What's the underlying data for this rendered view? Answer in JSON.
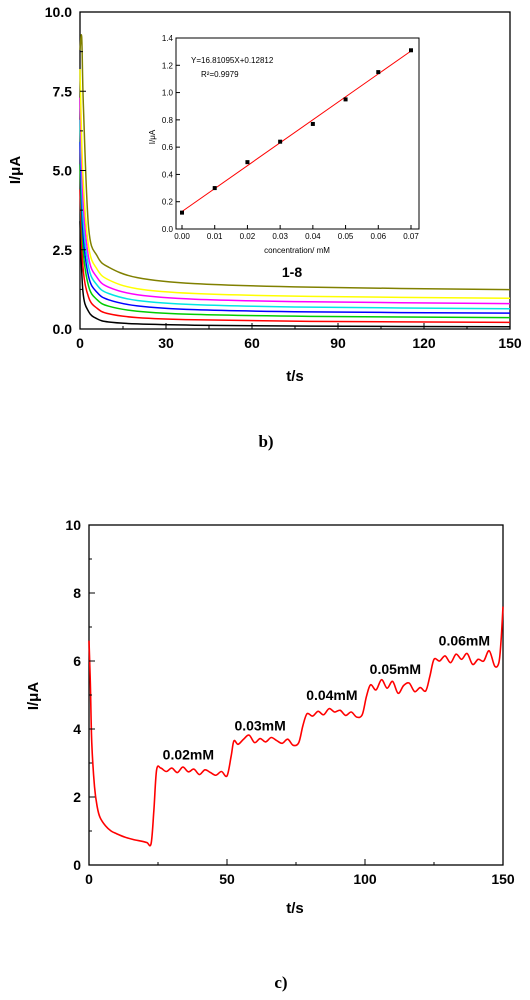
{
  "panel_labels": {
    "b": "b)",
    "c": "c)"
  },
  "chart_data": [
    {
      "type": "line",
      "xlabel": "t/s",
      "ylabel": "I/μA",
      "xlim": [
        0,
        150
      ],
      "ylim": [
        0,
        10
      ],
      "xticks": [
        "0",
        "30",
        "60",
        "90",
        "120",
        "150"
      ],
      "yticks": [
        "0.0",
        "2.5",
        "5.0",
        "7.5",
        "10.0"
      ],
      "annotation": "1-8",
      "series": [
        {
          "color": "#000000",
          "values": [
            [
              0,
              3.4
            ],
            [
              1,
              1.2
            ],
            [
              3,
              0.55
            ],
            [
              6,
              0.32
            ],
            [
              10,
              0.22
            ],
            [
              20,
              0.16
            ],
            [
              40,
              0.12
            ],
            [
              80,
              0.09
            ],
            [
              150,
              0.07
            ]
          ]
        },
        {
          "color": "#ff0000",
          "values": [
            [
              0,
              4.4
            ],
            [
              1,
              2.0
            ],
            [
              3,
              1.0
            ],
            [
              6,
              0.65
            ],
            [
              10,
              0.48
            ],
            [
              20,
              0.36
            ],
            [
              40,
              0.29
            ],
            [
              80,
              0.24
            ],
            [
              150,
              0.21
            ]
          ]
        },
        {
          "color": "#00cc00",
          "values": [
            [
              0,
              5.2
            ],
            [
              1,
              2.6
            ],
            [
              3,
              1.35
            ],
            [
              6,
              0.92
            ],
            [
              10,
              0.72
            ],
            [
              20,
              0.56
            ],
            [
              40,
              0.46
            ],
            [
              80,
              0.4
            ],
            [
              150,
              0.36
            ]
          ]
        },
        {
          "color": "#0000ff",
          "values": [
            [
              0,
              5.9
            ],
            [
              1,
              3.1
            ],
            [
              3,
              1.65
            ],
            [
              6,
              1.15
            ],
            [
              10,
              0.92
            ],
            [
              20,
              0.73
            ],
            [
              40,
              0.61
            ],
            [
              80,
              0.54
            ],
            [
              150,
              0.5
            ]
          ]
        },
        {
          "color": "#00e5e5",
          "values": [
            [
              0,
              6.6
            ],
            [
              1,
              3.6
            ],
            [
              3,
              1.95
            ],
            [
              6,
              1.38
            ],
            [
              10,
              1.12
            ],
            [
              20,
              0.9
            ],
            [
              40,
              0.77
            ],
            [
              80,
              0.69
            ],
            [
              150,
              0.64
            ]
          ]
        },
        {
          "color": "#ff00ff",
          "values": [
            [
              0,
              7.3
            ],
            [
              1,
              4.2
            ],
            [
              3,
              2.25
            ],
            [
              6,
              1.62
            ],
            [
              10,
              1.32
            ],
            [
              20,
              1.08
            ],
            [
              40,
              0.94
            ],
            [
              80,
              0.86
            ],
            [
              150,
              0.8
            ]
          ]
        },
        {
          "color": "#ffff00",
          "values": [
            [
              0,
              8.2
            ],
            [
              1,
              4.9
            ],
            [
              3,
              2.6
            ],
            [
              6,
              1.88
            ],
            [
              10,
              1.55
            ],
            [
              20,
              1.27
            ],
            [
              40,
              1.12
            ],
            [
              80,
              1.03
            ],
            [
              150,
              0.97
            ]
          ]
        },
        {
          "color": "#808000",
          "values": [
            [
              0,
              8.8
            ],
            [
              0.6,
              9.2
            ],
            [
              1.2,
              7.0
            ],
            [
              3,
              3.2
            ],
            [
              6,
              2.3
            ],
            [
              10,
              1.95
            ],
            [
              20,
              1.62
            ],
            [
              40,
              1.43
            ],
            [
              80,
              1.32
            ],
            [
              150,
              1.24
            ]
          ]
        }
      ],
      "inset": {
        "type": "scatter",
        "xlabel": "concentration/ mM",
        "ylabel": "I/μA",
        "xlim": [
          0,
          0.07
        ],
        "ylim": [
          0,
          1.4
        ],
        "xticks": [
          "0.00",
          "0.01",
          "0.02",
          "0.03",
          "0.04",
          "0.05",
          "0.06",
          "0.07"
        ],
        "yticks": [
          "0.0",
          "0.2",
          "0.4",
          "0.6",
          "0.8",
          "1.0",
          "1.2",
          "1.4"
        ],
        "equation": "Y=16.81095X+0.12812",
        "r2": "R²=0.9979",
        "fit": {
          "slope": 16.81095,
          "intercept": 0.12812,
          "color": "#ff0000"
        },
        "points": [
          [
            0,
            0.12
          ],
          [
            0.01,
            0.3
          ],
          [
            0.02,
            0.49
          ],
          [
            0.03,
            0.64
          ],
          [
            0.04,
            0.77
          ],
          [
            0.05,
            0.95
          ],
          [
            0.06,
            1.15
          ],
          [
            0.07,
            1.31
          ]
        ]
      }
    },
    {
      "type": "line",
      "xlabel": "t/s",
      "ylabel": "I/μA",
      "xlim": [
        0,
        150
      ],
      "ylim": [
        0,
        10
      ],
      "xticks": [
        "0",
        "50",
        "100",
        "150"
      ],
      "yticks": [
        "0",
        "2",
        "4",
        "6",
        "8",
        "10"
      ],
      "series": [
        {
          "color": "#ff0000",
          "values": [
            [
              0,
              6.6
            ],
            [
              0.5,
              5.3
            ],
            [
              1,
              3.6
            ],
            [
              2,
              2.3
            ],
            [
              3,
              1.7
            ],
            [
              4,
              1.4
            ],
            [
              6,
              1.15
            ],
            [
              8,
              1.0
            ],
            [
              10,
              0.92
            ],
            [
              13,
              0.82
            ],
            [
              16,
              0.75
            ],
            [
              19,
              0.7
            ],
            [
              21,
              0.66
            ],
            [
              22.5,
              0.63
            ],
            [
              23.5,
              1.6
            ],
            [
              24.5,
              2.8
            ],
            [
              26,
              2.85
            ],
            [
              28,
              2.75
            ],
            [
              30,
              2.85
            ],
            [
              32,
              2.72
            ],
            [
              34,
              2.88
            ],
            [
              36,
              2.74
            ],
            [
              38,
              2.82
            ],
            [
              40,
              2.66
            ],
            [
              42,
              2.8
            ],
            [
              44,
              2.72
            ],
            [
              46,
              2.64
            ],
            [
              48,
              2.75
            ],
            [
              50,
              2.62
            ],
            [
              51.5,
              3.2
            ],
            [
              52.5,
              3.65
            ],
            [
              54,
              3.55
            ],
            [
              56,
              3.7
            ],
            [
              58,
              3.82
            ],
            [
              60,
              3.6
            ],
            [
              62,
              3.72
            ],
            [
              64,
              3.62
            ],
            [
              66,
              3.75
            ],
            [
              68,
              3.66
            ],
            [
              70,
              3.58
            ],
            [
              72,
              3.7
            ],
            [
              74,
              3.52
            ],
            [
              76,
              3.6
            ],
            [
              77.5,
              4.1
            ],
            [
              79,
              4.45
            ],
            [
              81,
              4.38
            ],
            [
              83,
              4.52
            ],
            [
              85,
              4.42
            ],
            [
              87,
              4.6
            ],
            [
              89,
              4.5
            ],
            [
              91,
              4.55
            ],
            [
              93,
              4.4
            ],
            [
              95,
              4.5
            ],
            [
              97,
              4.35
            ],
            [
              99,
              4.42
            ],
            [
              100.5,
              4.95
            ],
            [
              102,
              5.3
            ],
            [
              104,
              5.15
            ],
            [
              106,
              5.45
            ],
            [
              108,
              5.2
            ],
            [
              110,
              5.4
            ],
            [
              112,
              5.05
            ],
            [
              114,
              5.28
            ],
            [
              116,
              5.35
            ],
            [
              118,
              5.1
            ],
            [
              120,
              5.22
            ],
            [
              122,
              5.12
            ],
            [
              123.5,
              5.55
            ],
            [
              125,
              6.05
            ],
            [
              127,
              6.0
            ],
            [
              129,
              6.15
            ],
            [
              131,
              5.95
            ],
            [
              133,
              6.2
            ],
            [
              135,
              6.05
            ],
            [
              137,
              6.22
            ],
            [
              139,
              5.9
            ],
            [
              141,
              6.05
            ],
            [
              143,
              6.0
            ],
            [
              145,
              6.3
            ],
            [
              147,
              5.85
            ],
            [
              148.5,
              5.95
            ],
            [
              149.3,
              6.6
            ],
            [
              150,
              7.6
            ]
          ]
        }
      ],
      "annotations": [
        {
          "text": "0.02mM",
          "x": 36,
          "y": 3.1
        },
        {
          "text": "0.03mM",
          "x": 62,
          "y": 3.95
        },
        {
          "text": "0.04mM",
          "x": 88,
          "y": 4.85
        },
        {
          "text": "0.05mM",
          "x": 111,
          "y": 5.62
        },
        {
          "text": "0.06mM",
          "x": 136,
          "y": 6.45
        }
      ]
    }
  ]
}
